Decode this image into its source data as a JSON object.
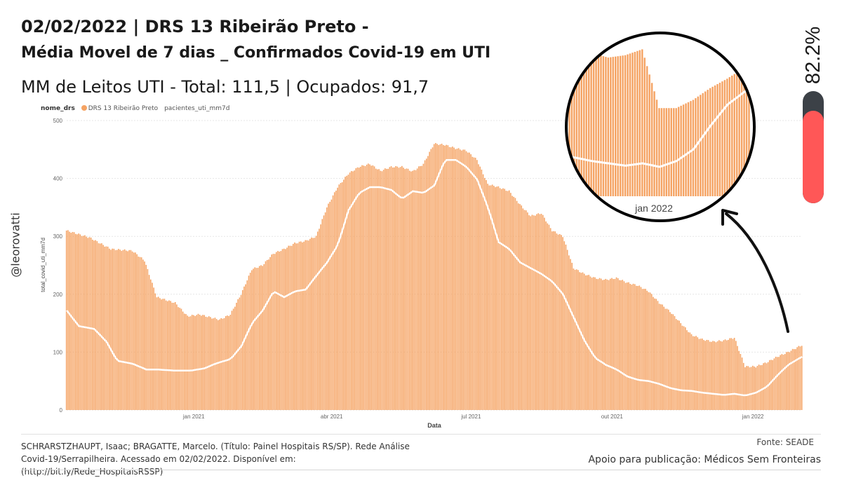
{
  "header": {
    "title_line1": "02/02/2022 | DRS 13 Ribeirão Preto -",
    "title_line2": "Média Movel de 7 dias _ Confirmados Covid-19 em UTI",
    "subtitle": "MM de Leitos UTI - Total: 111,5 | Ocupados: 91,7"
  },
  "legend": {
    "title": "nome_drs",
    "items": [
      {
        "label": "DRS 13 Ribeirão Preto",
        "color": "#f5a363"
      },
      {
        "label": "pacientes_uti_mm7d",
        "color": "#ffffff"
      }
    ]
  },
  "author": "@leorovatti",
  "occupancy": {
    "label": "82.2%",
    "value": 0.822,
    "track_color": "#3c4147",
    "fill_color": "#ff5757"
  },
  "zoom": {
    "label": "jan 2022"
  },
  "footer": {
    "citation": "SCHRARSTZHAUPT, Isaac; BRAGATTE, Marcelo. (Título: Painel Hospitais RS/SP). Rede Análise Covid-19/Serrapilheira. Acessado em 02/02/2022. Disponível em: (http://bit.ly/Rede_HospitaisRSSP)",
    "source": "Fonte: SEADE",
    "support": "Apoio para publicação: Médicos Sem Fronteiras"
  },
  "chart_data": {
    "type": "bar",
    "title": "",
    "xlabel": "Data",
    "ylabel": "total_covid_uti_mm7d",
    "ylim": [
      0,
      500
    ],
    "yticks": [
      0,
      100,
      200,
      300,
      400,
      500
    ],
    "grid": true,
    "legend_position": "top-left",
    "bar_color": "#f5a363",
    "line_color": "#ffffff",
    "x_ticks": [
      {
        "label": "jan 2021",
        "date": "2021-01-01"
      },
      {
        "label": "abr 2021",
        "date": "2021-04-01"
      },
      {
        "label": "jul 2021",
        "date": "2021-07-01"
      },
      {
        "label": "out 2021",
        "date": "2021-10-01"
      },
      {
        "label": "jan 2022",
        "date": "2022-01-01"
      }
    ],
    "date_range": [
      "2020-10-10",
      "2022-02-02"
    ],
    "series": [
      {
        "name": "total_covid_uti_mm7d",
        "type": "bar",
        "points": [
          [
            "2020-10-10",
            310
          ],
          [
            "2020-10-25",
            298
          ],
          [
            "2020-11-08",
            278
          ],
          [
            "2020-11-22",
            275
          ],
          [
            "2020-11-30",
            258
          ],
          [
            "2020-12-08",
            195
          ],
          [
            "2020-12-20",
            185
          ],
          [
            "2020-12-28",
            162
          ],
          [
            "2021-01-05",
            165
          ],
          [
            "2021-01-12",
            160
          ],
          [
            "2021-01-18",
            156
          ],
          [
            "2021-01-25",
            165
          ],
          [
            "2021-02-01",
            200
          ],
          [
            "2021-02-08",
            243
          ],
          [
            "2021-02-15",
            250
          ],
          [
            "2021-02-22",
            270
          ],
          [
            "2021-03-01",
            278
          ],
          [
            "2021-03-08",
            288
          ],
          [
            "2021-03-15",
            292
          ],
          [
            "2021-03-22",
            300
          ],
          [
            "2021-03-29",
            350
          ],
          [
            "2021-04-05",
            385
          ],
          [
            "2021-04-12",
            408
          ],
          [
            "2021-04-19",
            420
          ],
          [
            "2021-04-26",
            425
          ],
          [
            "2021-05-03",
            413
          ],
          [
            "2021-05-10",
            420
          ],
          [
            "2021-05-17",
            420
          ],
          [
            "2021-05-24",
            412
          ],
          [
            "2021-05-31",
            425
          ],
          [
            "2021-06-07",
            460
          ],
          [
            "2021-06-14",
            458
          ],
          [
            "2021-06-21",
            452
          ],
          [
            "2021-06-28",
            448
          ],
          [
            "2021-07-05",
            432
          ],
          [
            "2021-07-12",
            390
          ],
          [
            "2021-07-19",
            385
          ],
          [
            "2021-07-26",
            378
          ],
          [
            "2021-08-02",
            355
          ],
          [
            "2021-08-09",
            335
          ],
          [
            "2021-08-16",
            340
          ],
          [
            "2021-08-23",
            310
          ],
          [
            "2021-08-30",
            300
          ],
          [
            "2021-09-06",
            245
          ],
          [
            "2021-09-13",
            235
          ],
          [
            "2021-09-20",
            228
          ],
          [
            "2021-09-27",
            225
          ],
          [
            "2021-10-04",
            228
          ],
          [
            "2021-10-11",
            220
          ],
          [
            "2021-10-18",
            215
          ],
          [
            "2021-10-25",
            205
          ],
          [
            "2021-11-01",
            185
          ],
          [
            "2021-11-08",
            170
          ],
          [
            "2021-11-15",
            150
          ],
          [
            "2021-11-22",
            130
          ],
          [
            "2021-11-29",
            122
          ],
          [
            "2021-12-06",
            118
          ],
          [
            "2021-12-13",
            120
          ],
          [
            "2021-12-20",
            125
          ],
          [
            "2021-12-27",
            75
          ],
          [
            "2022-01-03",
            75
          ],
          [
            "2022-01-10",
            82
          ],
          [
            "2022-01-17",
            92
          ],
          [
            "2022-01-24",
            100
          ],
          [
            "2022-02-02",
            112
          ]
        ]
      },
      {
        "name": "pacientes_uti_mm7d",
        "type": "line",
        "points": [
          [
            "2020-10-10",
            172
          ],
          [
            "2020-10-18",
            145
          ],
          [
            "2020-10-28",
            140
          ],
          [
            "2020-11-05",
            118
          ],
          [
            "2020-11-12",
            85
          ],
          [
            "2020-11-22",
            80
          ],
          [
            "2020-12-01",
            70
          ],
          [
            "2020-12-08",
            70
          ],
          [
            "2020-12-20",
            68
          ],
          [
            "2020-12-30",
            68
          ],
          [
            "2021-01-08",
            72
          ],
          [
            "2021-01-15",
            80
          ],
          [
            "2021-01-25",
            88
          ],
          [
            "2021-02-01",
            110
          ],
          [
            "2021-02-08",
            150
          ],
          [
            "2021-02-15",
            172
          ],
          [
            "2021-02-22",
            205
          ],
          [
            "2021-03-01",
            195
          ],
          [
            "2021-03-08",
            205
          ],
          [
            "2021-03-15",
            208
          ],
          [
            "2021-03-22",
            232
          ],
          [
            "2021-03-29",
            255
          ],
          [
            "2021-04-05",
            285
          ],
          [
            "2021-04-12",
            345
          ],
          [
            "2021-04-19",
            375
          ],
          [
            "2021-04-26",
            385
          ],
          [
            "2021-05-03",
            385
          ],
          [
            "2021-05-10",
            380
          ],
          [
            "2021-05-17",
            365
          ],
          [
            "2021-05-24",
            378
          ],
          [
            "2021-05-31",
            375
          ],
          [
            "2021-06-07",
            388
          ],
          [
            "2021-06-14",
            432
          ],
          [
            "2021-06-21",
            432
          ],
          [
            "2021-06-28",
            420
          ],
          [
            "2021-07-05",
            398
          ],
          [
            "2021-07-12",
            350
          ],
          [
            "2021-07-19",
            290
          ],
          [
            "2021-07-26",
            278
          ],
          [
            "2021-08-02",
            255
          ],
          [
            "2021-08-09",
            245
          ],
          [
            "2021-08-16",
            235
          ],
          [
            "2021-08-23",
            222
          ],
          [
            "2021-08-30",
            200
          ],
          [
            "2021-09-06",
            160
          ],
          [
            "2021-09-13",
            120
          ],
          [
            "2021-09-20",
            90
          ],
          [
            "2021-09-27",
            78
          ],
          [
            "2021-10-04",
            70
          ],
          [
            "2021-10-11",
            58
          ],
          [
            "2021-10-18",
            52
          ],
          [
            "2021-10-25",
            50
          ],
          [
            "2021-11-01",
            45
          ],
          [
            "2021-11-08",
            38
          ],
          [
            "2021-11-15",
            34
          ],
          [
            "2021-11-22",
            33
          ],
          [
            "2021-11-29",
            30
          ],
          [
            "2021-12-06",
            28
          ],
          [
            "2021-12-13",
            26
          ],
          [
            "2021-12-20",
            28
          ],
          [
            "2021-12-27",
            25
          ],
          [
            "2022-01-03",
            30
          ],
          [
            "2022-01-10",
            40
          ],
          [
            "2022-01-17",
            60
          ],
          [
            "2022-01-24",
            78
          ],
          [
            "2022-02-02",
            92
          ]
        ]
      }
    ]
  }
}
